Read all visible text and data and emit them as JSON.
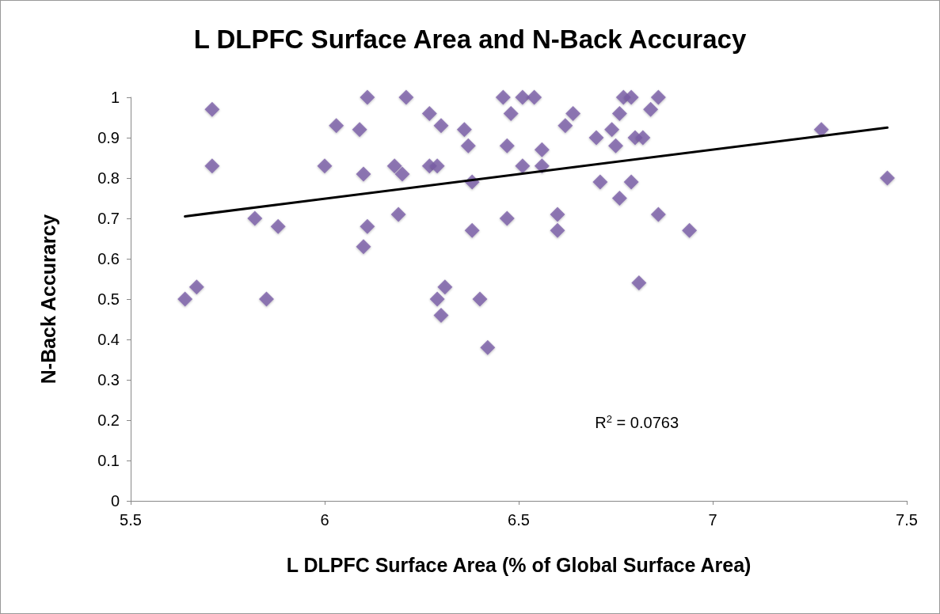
{
  "chart_data": {
    "type": "scatter",
    "title": "L DLPFC Surface Area and N-Back Accuracy",
    "xlabel": "L DLPFC Surface Area (% of Global Surface Area)",
    "ylabel": "N-Back Accurarcy",
    "xlim": [
      5.5,
      7.5
    ],
    "xticks": [
      5.5,
      6,
      6.5,
      7,
      7.5
    ],
    "ylim": [
      0,
      1
    ],
    "yticks": [
      0,
      0.1,
      0.2,
      0.3,
      0.4,
      0.5,
      0.6,
      0.7,
      0.8,
      0.9,
      1
    ],
    "grid": false,
    "annotations": [
      "R$^{2}$ = 0.0763"
    ],
    "series": [
      {
        "color": "#7b5ea7",
        "marker": "diamond",
        "x": [
          5.64,
          5.67,
          5.71,
          5.71,
          5.82,
          5.85,
          5.88,
          6.0,
          6.03,
          6.09,
          6.1,
          6.1,
          6.11,
          6.11,
          6.18,
          6.19,
          6.2,
          6.21,
          6.27,
          6.27,
          6.29,
          6.3,
          6.29,
          6.3,
          6.31,
          6.36,
          6.37,
          6.38,
          6.38,
          6.4,
          6.42,
          6.46,
          6.47,
          6.47,
          6.48,
          6.51,
          6.51,
          6.54,
          6.56,
          6.56,
          6.6,
          6.6,
          6.62,
          6.64,
          6.7,
          6.71,
          6.74,
          6.75,
          6.76,
          6.76,
          6.77,
          6.79,
          6.79,
          6.8,
          6.82,
          6.81,
          6.84,
          6.86,
          6.86,
          6.94,
          7.28,
          7.45
        ],
        "values": [
          0.5,
          0.53,
          0.97,
          0.83,
          0.7,
          0.5,
          0.68,
          0.83,
          0.93,
          0.92,
          0.81,
          0.63,
          1.0,
          0.68,
          0.83,
          0.71,
          0.81,
          1.0,
          0.96,
          0.83,
          0.83,
          0.93,
          0.5,
          0.46,
          0.53,
          0.92,
          0.88,
          0.79,
          0.67,
          0.5,
          0.38,
          1.0,
          0.7,
          0.88,
          0.96,
          1.0,
          0.83,
          1.0,
          0.87,
          0.83,
          0.71,
          0.67,
          0.93,
          0.96,
          0.9,
          0.79,
          0.92,
          0.88,
          0.75,
          0.96,
          1.0,
          1.0,
          0.79,
          0.9,
          0.9,
          0.54,
          0.97,
          1.0,
          0.71,
          0.67,
          0.92,
          0.8
        ]
      },
      {
        "type": "line",
        "color": "#000000",
        "line_style": "solid",
        "marker": "none",
        "x": [
          5.64,
          7.45
        ],
        "values": [
          0.705,
          0.925
        ]
      }
    ]
  }
}
